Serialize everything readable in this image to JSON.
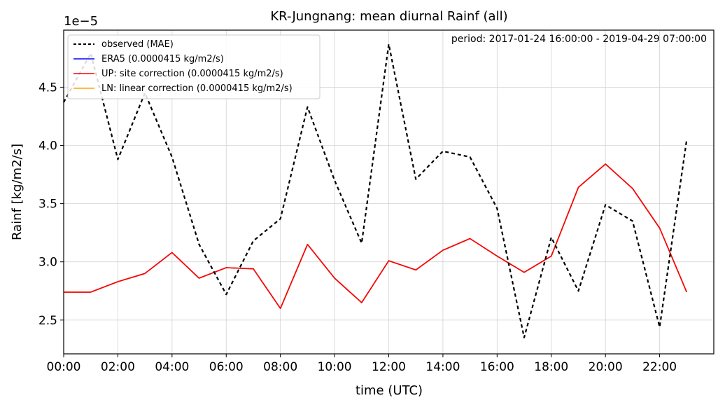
{
  "chart_data": {
    "type": "line",
    "title": "KR-Jungnang: mean diurnal Rainf (all)",
    "xlabel": "time (UTC)",
    "ylabel": "Rainf [kg/m2/s]",
    "y_offset_label": "1e−5",
    "annotation": "period: 2017-01-24 16:00:00 - 2019-04-29 07:00:00",
    "x_ticks": [
      "00:00",
      "02:00",
      "04:00",
      "06:00",
      "08:00",
      "10:00",
      "12:00",
      "14:00",
      "16:00",
      "18:00",
      "20:00",
      "22:00"
    ],
    "x_tick_values": [
      0,
      2,
      4,
      6,
      8,
      10,
      12,
      14,
      16,
      18,
      20,
      22
    ],
    "y_ticks": [
      "2.5",
      "3.0",
      "3.5",
      "4.0",
      "4.5"
    ],
    "y_tick_values": [
      2.5,
      3.0,
      3.5,
      4.0,
      4.5
    ],
    "xlim": [
      0,
      24
    ],
    "ylim": [
      2.21,
      4.99
    ],
    "grid": true,
    "legend_position": "top-left",
    "x": [
      0,
      1,
      2,
      3,
      4,
      5,
      6,
      7,
      8,
      9,
      10,
      11,
      12,
      13,
      14,
      15,
      16,
      17,
      18,
      19,
      20,
      21,
      22,
      23
    ],
    "series": [
      {
        "name": "observed (MAE)",
        "color": "#000000",
        "dash": true,
        "values": [
          4.37,
          4.79,
          3.88,
          4.45,
          3.9,
          3.15,
          2.72,
          3.18,
          3.37,
          4.33,
          3.7,
          3.16,
          4.87,
          3.71,
          3.95,
          3.9,
          3.46,
          2.35,
          3.21,
          2.75,
          3.49,
          3.35,
          2.44,
          4.05
        ]
      },
      {
        "name": "ERA5 (0.0000415 kg/m2/s)",
        "color": "#0000ff",
        "dash": false,
        "values": [
          2.74,
          2.74,
          2.83,
          2.9,
          3.08,
          2.86,
          2.95,
          2.94,
          2.6,
          3.15,
          2.86,
          2.65,
          3.01,
          2.93,
          3.1,
          3.2,
          3.05,
          2.91,
          3.05,
          3.64,
          3.84,
          3.63,
          3.29,
          2.74
        ]
      },
      {
        "name": "UP: site correction (0.0000415 kg/m2/s)",
        "color": "#ff0000",
        "dash": false,
        "values": [
          2.74,
          2.74,
          2.83,
          2.9,
          3.08,
          2.86,
          2.95,
          2.94,
          2.6,
          3.15,
          2.86,
          2.65,
          3.01,
          2.93,
          3.1,
          3.2,
          3.05,
          2.91,
          3.05,
          3.64,
          3.84,
          3.63,
          3.29,
          2.74
        ]
      },
      {
        "name": "LN: linear correction (0.0000415 kg/m2/s)",
        "color": "#ffa500",
        "dash": false,
        "values": [
          2.74,
          2.74,
          2.83,
          2.9,
          3.08,
          2.86,
          2.95,
          2.94,
          2.6,
          3.15,
          2.86,
          2.65,
          3.01,
          2.93,
          3.1,
          3.2,
          3.05,
          2.91,
          3.05,
          3.64,
          3.84,
          3.63,
          3.29,
          2.74
        ]
      }
    ]
  }
}
